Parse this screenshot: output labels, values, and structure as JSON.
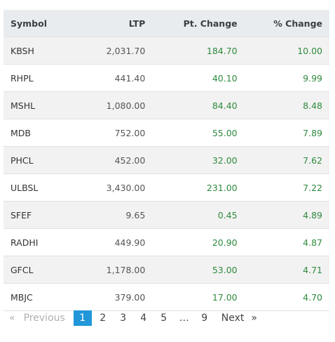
{
  "table": {
    "header": [
      "Symbol",
      "LTP",
      "Pt. Change",
      "% Change"
    ],
    "rows": [
      [
        "KBSH",
        "2,031.70",
        "184.70",
        "10.00"
      ],
      [
        "RHPL",
        "441.40",
        "40.10",
        "9.99"
      ],
      [
        "MSHL",
        "1,080.00",
        "84.40",
        "8.48"
      ],
      [
        "MDB",
        "752.00",
        "55.00",
        "7.89"
      ],
      [
        "PHCL",
        "452.00",
        "32.00",
        "7.62"
      ],
      [
        "ULBSL",
        "3,430.00",
        "231.00",
        "7.22"
      ],
      [
        "SFEF",
        "9.65",
        "0.45",
        "4.89"
      ],
      [
        "RADHI",
        "449.90",
        "20.90",
        "4.87"
      ],
      [
        "GFCL",
        "1,178.00",
        "53.00",
        "4.71"
      ],
      [
        "MBJC",
        "379.00",
        "17.00",
        "4.70"
      ]
    ]
  },
  "pagination": {
    "prev_icon": "«",
    "previous": "Previous",
    "pages": [
      "1",
      "2",
      "3",
      "4",
      "5",
      "…",
      "9"
    ],
    "next": "Next",
    "next_icon": "»"
  }
}
